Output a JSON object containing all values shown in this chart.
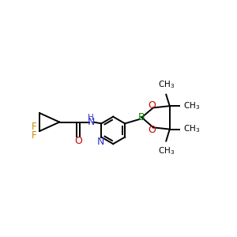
{
  "background_color": "#ffffff",
  "figsize": [
    3.0,
    3.0
  ],
  "dpi": 100,
  "bond_lw": 1.4,
  "black": "#000000",
  "red": "#cc0000",
  "blue": "#3333cc",
  "green": "#008000",
  "orange": "#cc8800",
  "xlim": [
    0.0,
    6.5
  ],
  "ylim": [
    0.5,
    3.8
  ]
}
